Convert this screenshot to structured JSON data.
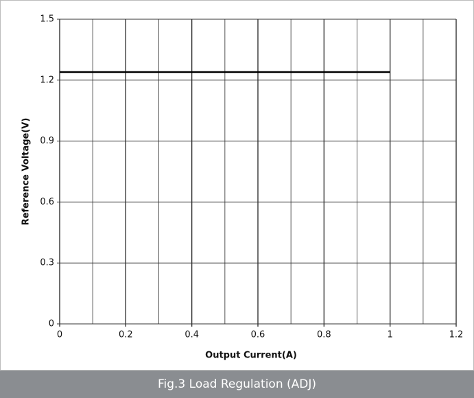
{
  "chart_data": {
    "type": "line",
    "caption": "Fig.3 Load Regulation (ADJ)",
    "xlabel": "Output Current(A)",
    "ylabel": "Reference Voltage(V)",
    "x": [
      0,
      1.0
    ],
    "series": [
      {
        "name": "Reference Voltage",
        "color": "#000000",
        "values": [
          1.24,
          1.24
        ]
      }
    ],
    "xlim": [
      0,
      1.2
    ],
    "xticks": [
      0,
      0.2,
      0.4,
      0.6,
      0.8,
      1.0,
      1.2
    ],
    "xminorticks": [
      0.1,
      0.3,
      0.5,
      0.7,
      0.9,
      1.1
    ],
    "ylim": [
      0,
      1.5
    ],
    "yticks": [
      0,
      0.3,
      0.6,
      0.9,
      1.2,
      1.5
    ],
    "grid": true
  }
}
